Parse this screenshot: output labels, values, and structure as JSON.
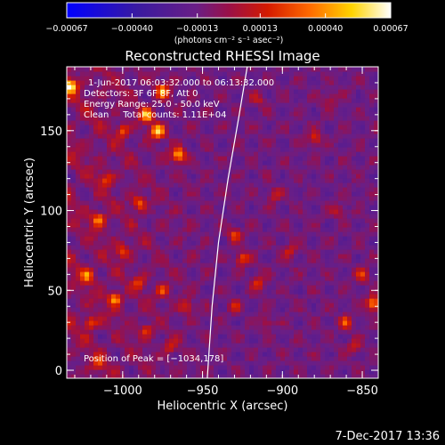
{
  "chart_data": {
    "type": "heatmap",
    "title": "Reconstructed RHESSI Image",
    "xlabel": "Heliocentric X (arcsec)",
    "ylabel": "Heliocentric Y (arcsec)",
    "xlim": [
      -1035,
      -840
    ],
    "ylim": [
      -5,
      190
    ],
    "x_ticks": [
      -1000,
      -950,
      -900,
      -850
    ],
    "x_tick_labels": [
      "−1000",
      "−950",
      "−900",
      "−850"
    ],
    "y_ticks": [
      0,
      50,
      100,
      150
    ],
    "y_tick_labels": [
      "0",
      "50",
      "100",
      "150"
    ],
    "colorbar": {
      "min": -0.00067,
      "max": 0.00067,
      "tick_values": [
        -0.00067,
        -0.0004,
        -0.00013,
        0.00013,
        0.0004,
        0.00067
      ],
      "tick_labels": [
        "−0.00067",
        "−0.00040",
        "−0.00013",
        "0.00013",
        "0.00040",
        "0.00067"
      ],
      "units_label": "(photons cm⁻² s⁻¹ asec⁻²)",
      "colormap": "rainbow-blue-purple-red-orange-yellow-white"
    },
    "annotations": [
      "1-Jun-2017 06:03:32.000 to 06:13:32.000",
      "Detectors: 3F 6F 8F, Att 0",
      "Energy Range: 25.0 - 50.0 keV",
      "Clean     Total counts: 1.11E+04"
    ],
    "peak_label": "Position of Peak = [−1034,178]",
    "peak_position": [
      -1034,
      178
    ],
    "limb_curve": [
      [
        -947,
        -5
      ],
      [
        -944,
        40
      ],
      [
        -940,
        80
      ],
      [
        -934,
        120
      ],
      [
        -927,
        160
      ],
      [
        -922,
        190
      ]
    ],
    "hot_spots": [
      {
        "x": -1033,
        "y": 178,
        "value": 0.00067
      },
      {
        "x": -975,
        "y": 175,
        "value": 0.0005
      },
      {
        "x": -985,
        "y": 160,
        "value": 0.00055
      },
      {
        "x": -978,
        "y": 150,
        "value": 0.0006
      },
      {
        "x": -965,
        "y": 135,
        "value": 0.00058
      },
      {
        "x": -1000,
        "y": 150,
        "value": 0.00035
      },
      {
        "x": -1010,
        "y": 120,
        "value": 0.0003
      },
      {
        "x": -990,
        "y": 105,
        "value": 0.0004
      },
      {
        "x": -1015,
        "y": 95,
        "value": 0.00045
      },
      {
        "x": -1000,
        "y": 75,
        "value": 0.00035
      },
      {
        "x": -1022,
        "y": 60,
        "value": 0.0004
      },
      {
        "x": -990,
        "y": 55,
        "value": 0.0003
      },
      {
        "x": -1005,
        "y": 45,
        "value": 0.00048
      },
      {
        "x": -975,
        "y": 50,
        "value": 0.00035
      },
      {
        "x": -960,
        "y": 40,
        "value": 0.0003
      },
      {
        "x": -1020,
        "y": 30,
        "value": 0.00035
      },
      {
        "x": -985,
        "y": 25,
        "value": 0.0003
      },
      {
        "x": -970,
        "y": 15,
        "value": 0.00025
      },
      {
        "x": -1015,
        "y": 5,
        "value": 0.00025
      },
      {
        "x": -930,
        "y": 85,
        "value": 0.00035
      },
      {
        "x": -925,
        "y": 70,
        "value": 0.0004
      },
      {
        "x": -915,
        "y": 55,
        "value": 0.0003
      },
      {
        "x": -930,
        "y": 40,
        "value": 0.00025
      },
      {
        "x": -910,
        "y": 30,
        "value": 0.0002
      },
      {
        "x": -905,
        "y": 110,
        "value": 0.00025
      },
      {
        "x": -895,
        "y": 75,
        "value": 0.00025
      },
      {
        "x": -880,
        "y": 145,
        "value": 0.0003
      },
      {
        "x": -870,
        "y": 170,
        "value": 0.0002
      },
      {
        "x": -865,
        "y": 100,
        "value": 0.0002
      },
      {
        "x": -850,
        "y": 60,
        "value": 0.0003
      },
      {
        "x": -843,
        "y": 42,
        "value": 0.00055
      },
      {
        "x": -860,
        "y": 30,
        "value": 0.00035
      },
      {
        "x": -855,
        "y": 15,
        "value": 0.00025
      },
      {
        "x": -915,
        "y": 170,
        "value": 0.0002
      }
    ]
  },
  "footer": {
    "timestamp": "7-Dec-2017 13:36"
  }
}
